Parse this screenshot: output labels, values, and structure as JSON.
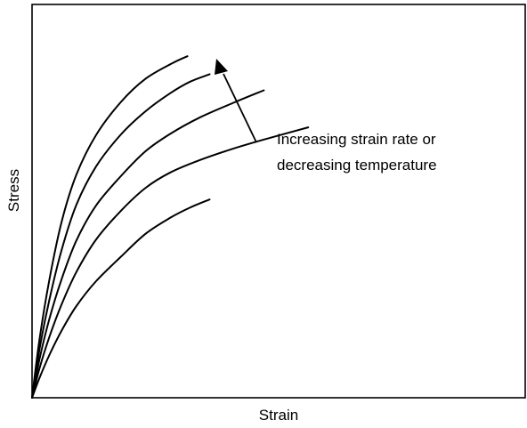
{
  "chart_data": {
    "type": "line",
    "title": "",
    "xlabel": "Strain",
    "ylabel": "Stress",
    "grid": false,
    "legend": "none",
    "x_ticks": [],
    "y_ticks": [],
    "annotation": {
      "lines": [
        "Increasing strain rate or",
        "decreasing temperature"
      ]
    },
    "series": [
      {
        "x": [
          0,
          1.5,
          3.5,
          6,
          9,
          13,
          18,
          23,
          28,
          32,
          36
        ],
        "y": [
          0,
          6,
          13,
          20.5,
          28,
          35.6,
          43,
          50,
          54.9,
          58,
          60.5
        ]
      },
      {
        "x": [
          0,
          1.5,
          3.5,
          6,
          9,
          13,
          18,
          23,
          28,
          34,
          41,
          48.5,
          56
        ],
        "y": [
          0,
          8.9,
          18.5,
          28.5,
          38.4,
          48.3,
          57,
          64,
          68.7,
          72.5,
          76.1,
          79.4,
          82.5
        ]
      },
      {
        "x": [
          0,
          1.5,
          3.5,
          6,
          9,
          13,
          18,
          23,
          28,
          34,
          41,
          47
        ],
        "y": [
          0,
          11.7,
          24,
          36.2,
          48,
          58.7,
          67.6,
          75.2,
          80.5,
          85.5,
          90.1,
          93.8
        ]
      },
      {
        "x": [
          0,
          1.5,
          3.5,
          6,
          9,
          13,
          18,
          23,
          28,
          32,
          36
        ],
        "y": [
          0,
          14.7,
          29.8,
          45.1,
          58.9,
          70.6,
          80.3,
          87.4,
          92.9,
          96.4,
          98.7
        ]
      },
      {
        "x": [
          0,
          1.5,
          3.5,
          6,
          9,
          13,
          18,
          23,
          28.5,
          31.5
        ],
        "y": [
          0,
          17.7,
          35.9,
          53.7,
          68.1,
          80.2,
          90.2,
          97.3,
          102.1,
          104.2
        ]
      }
    ],
    "xlim": [
      0,
      100
    ],
    "ylim": [
      0,
      120
    ]
  }
}
